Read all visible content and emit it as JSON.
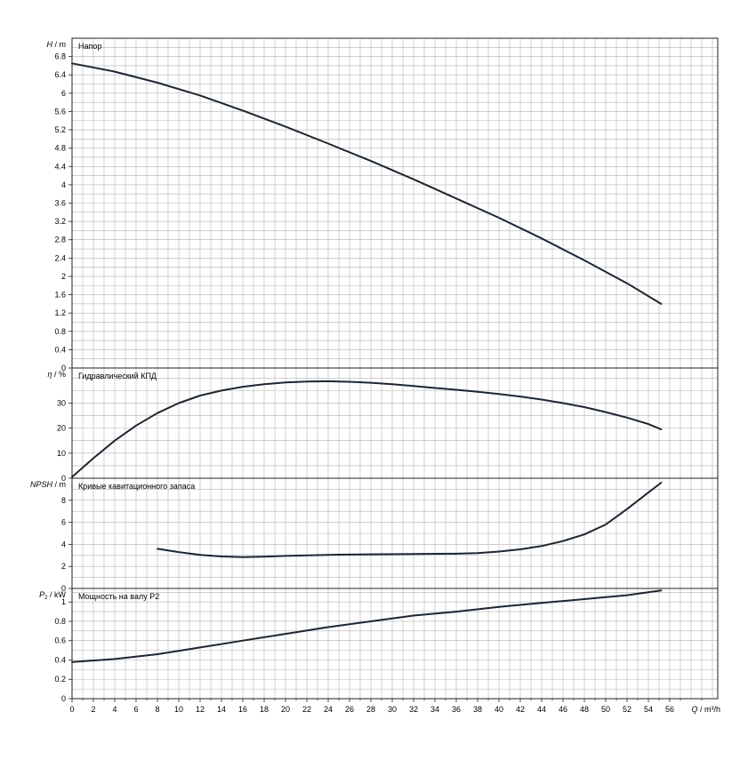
{
  "chart_data": [
    {
      "type": "line",
      "panel": "head",
      "title": "Напор",
      "ylabel_symbol": "H",
      "ylabel_unit": "m",
      "ylim": [
        0,
        7.2
      ],
      "yticks": [
        0,
        0.4,
        0.8,
        1.2,
        1.6,
        2,
        2.4,
        2.8,
        3.2,
        3.6,
        4,
        4.4,
        4.8,
        5.2,
        5.6,
        6,
        6.4,
        6.8
      ],
      "ytick_labels": [
        "0",
        "0.4",
        "0.8",
        "1.2",
        "1.6",
        "2",
        "2.4",
        "2.8",
        "3.2",
        "3.6",
        "4",
        "4.4",
        "4.8",
        "5.2",
        "5.6",
        "6",
        "6.4",
        "6.8"
      ],
      "grid": true,
      "series": [
        {
          "x": [
            0,
            4,
            8,
            12,
            16,
            20,
            24,
            28,
            32,
            36,
            40,
            44,
            48,
            52,
            55.2
          ],
          "y": [
            6.65,
            6.47,
            6.23,
            5.95,
            5.62,
            5.27,
            4.9,
            4.52,
            4.12,
            3.7,
            3.28,
            2.83,
            2.35,
            1.85,
            1.4
          ]
        }
      ]
    },
    {
      "type": "line",
      "panel": "efficiency",
      "title": "Гидравлический КПД",
      "ylabel_symbol": "η",
      "ylabel_unit": "%",
      "ylim": [
        0,
        44
      ],
      "yticks": [
        0,
        10,
        20,
        30
      ],
      "ytick_labels": [
        "0",
        "10",
        "20",
        "30"
      ],
      "grid": true,
      "series": [
        {
          "x": [
            0,
            2,
            4,
            6,
            8,
            10,
            12,
            14,
            16,
            18,
            20,
            22,
            24,
            26,
            28,
            30,
            32,
            34,
            36,
            38,
            40,
            42,
            44,
            46,
            48,
            50,
            52,
            54,
            55.2
          ],
          "y": [
            0.5,
            8,
            15,
            21,
            26,
            30,
            33,
            35,
            36.5,
            37.5,
            38.2,
            38.6,
            38.7,
            38.5,
            38.1,
            37.5,
            36.8,
            36,
            35.3,
            34.5,
            33.6,
            32.6,
            31.4,
            30,
            28.4,
            26.4,
            24.2,
            21.6,
            19.5
          ]
        }
      ]
    },
    {
      "type": "line",
      "panel": "npsh",
      "title": "Кривые кавитационного запаса",
      "ylabel_symbol": "NPSH",
      "ylabel_unit": "m",
      "ylim": [
        0,
        10
      ],
      "yticks": [
        0,
        2,
        4,
        6,
        8
      ],
      "ytick_labels": [
        "0",
        "2",
        "4",
        "6",
        "8"
      ],
      "grid": true,
      "series": [
        {
          "x": [
            8,
            10,
            12,
            14,
            16,
            18,
            20,
            24,
            28,
            32,
            36,
            38,
            40,
            42,
            44,
            46,
            48,
            50,
            52,
            54,
            55.2
          ],
          "y": [
            3.6,
            3.3,
            3.05,
            2.9,
            2.85,
            2.88,
            2.95,
            3.05,
            3.1,
            3.12,
            3.15,
            3.2,
            3.35,
            3.55,
            3.85,
            4.3,
            4.9,
            5.8,
            7.2,
            8.7,
            9.6
          ]
        }
      ]
    },
    {
      "type": "line",
      "panel": "power",
      "title": "Мощность на валу P2",
      "ylabel_symbol": "P",
      "ylabel_sub": "2",
      "ylabel_unit": "kW",
      "ylim": [
        0,
        1.14
      ],
      "yticks": [
        0,
        0.2,
        0.4,
        0.6,
        0.8,
        1
      ],
      "ytick_labels": [
        "0",
        "0.2",
        "0.4",
        "0.6",
        "0.8",
        "1"
      ],
      "grid": true,
      "series": [
        {
          "x": [
            0,
            4,
            8,
            12,
            16,
            20,
            24,
            28,
            32,
            36,
            40,
            44,
            48,
            52,
            55.2
          ],
          "y": [
            0.38,
            0.41,
            0.46,
            0.53,
            0.6,
            0.67,
            0.74,
            0.8,
            0.86,
            0.9,
            0.95,
            0.99,
            1.03,
            1.07,
            1.12
          ]
        }
      ]
    }
  ],
  "x_axis": {
    "xlabel_symbol": "Q",
    "xlabel_unit": "m³/h",
    "xlim": [
      0,
      60.5
    ],
    "xticks": [
      0,
      2,
      4,
      6,
      8,
      10,
      12,
      14,
      16,
      18,
      20,
      22,
      24,
      26,
      28,
      30,
      32,
      34,
      36,
      38,
      40,
      42,
      44,
      46,
      48,
      50,
      52,
      54,
      56
    ],
    "xtick_labels": [
      "0",
      "2",
      "4",
      "6",
      "8",
      "10",
      "12",
      "14",
      "16",
      "18",
      "20",
      "22",
      "24",
      "26",
      "28",
      "30",
      "32",
      "34",
      "36",
      "38",
      "40",
      "42",
      "44",
      "46",
      "48",
      "50",
      "52",
      "54",
      "56"
    ]
  },
  "colors": {
    "curve": "#1c2632",
    "grid": "#b4b4b4",
    "frame": "#222222"
  }
}
